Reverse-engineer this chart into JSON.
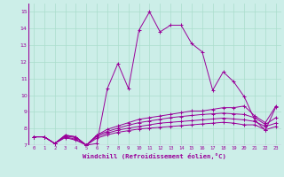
{
  "xlabel": "Windchill (Refroidissement éolien,°C)",
  "bg_color": "#cceee8",
  "grid_color": "#aaddcc",
  "line_color": "#990099",
  "xlim": [
    -0.5,
    23.5
  ],
  "ylim": [
    7.0,
    15.5
  ],
  "yticks": [
    7,
    8,
    9,
    10,
    11,
    12,
    13,
    14,
    15
  ],
  "xticks": [
    0,
    1,
    2,
    3,
    4,
    5,
    6,
    7,
    8,
    9,
    10,
    11,
    12,
    13,
    14,
    15,
    16,
    17,
    18,
    19,
    20,
    21,
    22,
    23
  ],
  "series": [
    [
      7.5,
      7.5,
      7.1,
      7.6,
      7.5,
      7.0,
      7.1,
      10.4,
      11.9,
      10.4,
      13.9,
      15.0,
      13.8,
      14.2,
      14.2,
      13.1,
      12.6,
      10.3,
      11.4,
      10.8,
      9.9,
      8.5,
      7.9,
      9.3
    ],
    [
      7.5,
      7.5,
      7.1,
      7.6,
      7.5,
      7.0,
      7.6,
      7.95,
      8.15,
      8.35,
      8.55,
      8.65,
      8.75,
      8.85,
      8.95,
      9.05,
      9.05,
      9.15,
      9.25,
      9.25,
      9.35,
      8.75,
      8.35,
      9.35
    ],
    [
      7.5,
      7.5,
      7.1,
      7.55,
      7.45,
      7.0,
      7.6,
      7.82,
      8.02,
      8.2,
      8.35,
      8.45,
      8.55,
      8.65,
      8.72,
      8.78,
      8.84,
      8.88,
      8.92,
      8.88,
      8.84,
      8.64,
      8.24,
      8.65
    ],
    [
      7.5,
      7.5,
      7.1,
      7.5,
      7.35,
      7.0,
      7.52,
      7.72,
      7.9,
      8.02,
      8.12,
      8.22,
      8.32,
      8.37,
      8.42,
      8.47,
      8.52,
      8.57,
      8.62,
      8.57,
      8.52,
      8.42,
      8.12,
      8.32
    ],
    [
      7.5,
      7.5,
      7.1,
      7.45,
      7.3,
      7.0,
      7.42,
      7.62,
      7.77,
      7.87,
      7.97,
      8.02,
      8.07,
      8.12,
      8.17,
      8.22,
      8.27,
      8.32,
      8.37,
      8.32,
      8.22,
      8.22,
      7.92,
      8.12
    ]
  ]
}
